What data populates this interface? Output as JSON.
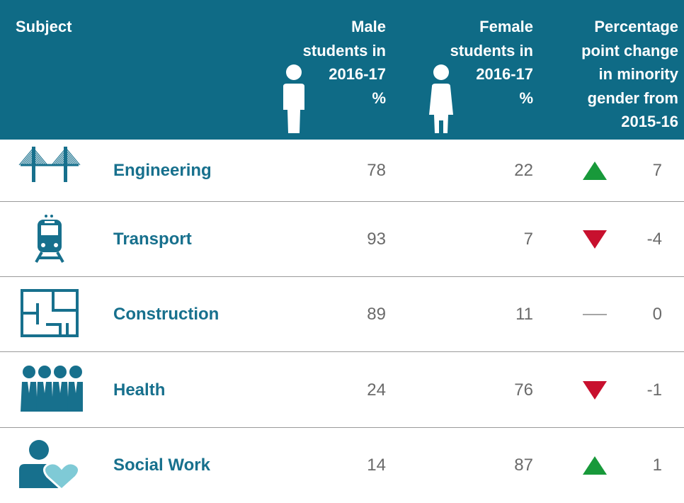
{
  "table": {
    "header": [
      {
        "lines": [
          "Subject"
        ]
      },
      {
        "lines": [
          "Male",
          "students in",
          "2016-17",
          "%"
        ]
      },
      {
        "lines": [
          "Female",
          "students in",
          "2016-17",
          "%"
        ]
      },
      {
        "lines": [
          "Percentage",
          "point change",
          "in minority",
          "gender from",
          "2015-16"
        ]
      }
    ],
    "rows": [
      [
        "Engineering",
        78,
        22,
        7
      ],
      [
        "Transport",
        93,
        7,
        -4
      ],
      [
        "Construction",
        89,
        11,
        0
      ],
      [
        "Health",
        24,
        76,
        -1
      ],
      [
        "Social Work",
        14,
        87,
        1
      ]
    ]
  }
}
